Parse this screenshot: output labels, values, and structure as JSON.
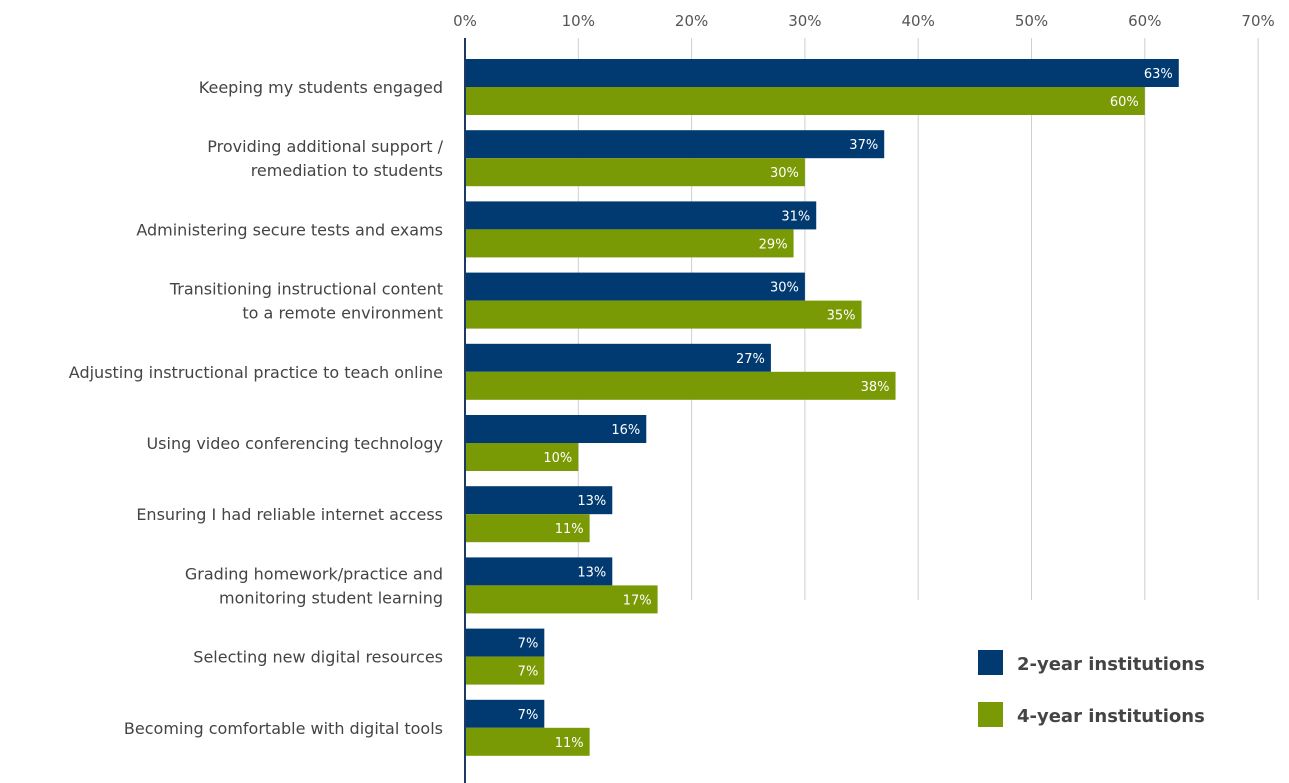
{
  "chart_data": {
    "type": "bar",
    "orientation": "horizontal",
    "categories": [
      [
        "Keeping my students engaged"
      ],
      [
        "Providing additional support /",
        "remediation to students"
      ],
      [
        "Administering secure tests and exams"
      ],
      [
        "Transitioning instructional content",
        "to a remote environment"
      ],
      [
        "Adjusting instructional practice to teach online"
      ],
      [
        "Using video conferencing technology"
      ],
      [
        "Ensuring I had reliable internet access"
      ],
      [
        "Grading homework/practice and",
        "monitoring student learning"
      ],
      [
        "Selecting new digital resources"
      ],
      [
        "Becoming comfortable with digital tools"
      ]
    ],
    "series": [
      {
        "name": "2-year institutions",
        "color": "#003a70",
        "values": [
          63,
          37,
          31,
          30,
          27,
          16,
          13,
          13,
          7,
          7
        ]
      },
      {
        "name": "4-year institutions",
        "color": "#799a05",
        "values": [
          60,
          30,
          29,
          35,
          38,
          10,
          11,
          17,
          7,
          11
        ]
      }
    ],
    "xlim": [
      0,
      70
    ],
    "xticks": [
      0,
      10,
      20,
      30,
      40,
      50,
      60,
      70
    ],
    "tick_suffix": "%",
    "xaxis_position": "top",
    "grid": true,
    "legend_position": "bottom-right",
    "title": "",
    "xlabel": "",
    "ylabel": ""
  }
}
